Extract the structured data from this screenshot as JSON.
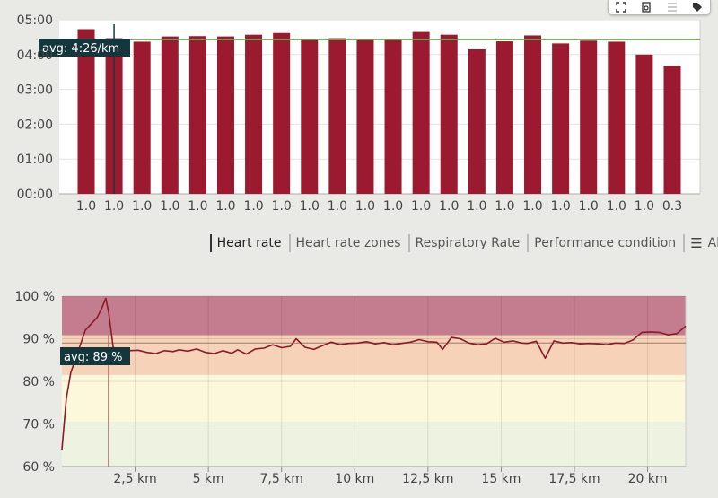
{
  "colors": {
    "bar": "#9b1a30",
    "avg_line": "#6aa84f",
    "hr_line": "#8b1a2a",
    "zone_top": "#c37d8e",
    "zone_orange": "#f6d3b8",
    "zone_yellow": "#fbf8dc",
    "zone_green": "#edf3e0"
  },
  "toolbar": {
    "icons": [
      "fullscreen-icon",
      "export-icon",
      "list-icon",
      "tag-icon"
    ]
  },
  "tabs": [
    {
      "label": "Heart rate",
      "active": true
    },
    {
      "label": "Heart rate zones",
      "active": false
    },
    {
      "label": "Respiratory Rate",
      "active": false
    },
    {
      "label": "Performance condition",
      "active": false
    },
    {
      "label": "All",
      "active": false
    }
  ],
  "chart_data": [
    {
      "type": "bar",
      "y_unit": "min/km",
      "categories": [
        "1.0",
        "1.0",
        "1.0",
        "1.0",
        "1.0",
        "1.0",
        "1.0",
        "1.0",
        "1.0",
        "1.0",
        "1.0",
        "1.0",
        "1.0",
        "1.0",
        "1.0",
        "1.0",
        "1.0",
        "1.0",
        "1.0",
        "1.0",
        "1.0",
        "0.3"
      ],
      "values": [
        4.73,
        4.47,
        4.37,
        4.52,
        4.53,
        4.52,
        4.57,
        4.62,
        4.42,
        4.47,
        4.42,
        4.42,
        4.65,
        4.57,
        4.15,
        4.38,
        4.55,
        4.32,
        4.4,
        4.37,
        4.0,
        3.68
      ],
      "ylim": [
        0,
        5
      ],
      "yticks": [
        0,
        1,
        2,
        3,
        4,
        5
      ],
      "ytick_labels": [
        "00:00",
        "01:00",
        "02:00",
        "03:00",
        "04:00",
        "05:00"
      ],
      "avg_value": 4.43,
      "avg_label": "avg: 4:26/km",
      "cursor_category_index": 1,
      "grid": true
    },
    {
      "type": "line",
      "ylim": [
        60,
        100
      ],
      "yticks": [
        60,
        70,
        80,
        90,
        100
      ],
      "ytick_labels": [
        "60 %",
        "70 %",
        "80 %",
        "90 %",
        "100 %"
      ],
      "xlim": [
        0,
        21.3
      ],
      "xticks": [
        2.5,
        5,
        7.5,
        10,
        12.5,
        15,
        17.5,
        20
      ],
      "xtick_labels": [
        "2,5 km",
        "5 km",
        "7,5 km",
        "10 km",
        "12,5 km",
        "15 km",
        "17,5 km",
        "20 km"
      ],
      "zones": [
        {
          "from": 90.8,
          "to": 100,
          "color": "#c37d8e"
        },
        {
          "from": 81.5,
          "to": 90.8,
          "color": "#f6d3b8"
        },
        {
          "from": 70.5,
          "to": 81.5,
          "color": "#fbf8dc"
        },
        {
          "from": 60,
          "to": 70.5,
          "color": "#edf3e0"
        }
      ],
      "avg_value": 89,
      "avg_label": "avg: 89 %",
      "cursor_x": 1.58,
      "x": [
        0,
        0.15,
        0.3,
        0.45,
        0.6,
        0.8,
        1.0,
        1.2,
        1.35,
        1.5,
        1.6,
        1.75,
        2.0,
        2.3,
        2.6,
        2.9,
        3.2,
        3.5,
        3.8,
        4.0,
        4.3,
        4.6,
        4.9,
        5.2,
        5.5,
        5.8,
        6.0,
        6.3,
        6.6,
        6.9,
        7.2,
        7.5,
        7.8,
        8.0,
        8.3,
        8.6,
        8.9,
        9.2,
        9.5,
        9.8,
        10.1,
        10.4,
        10.7,
        11.0,
        11.3,
        11.6,
        11.9,
        12.2,
        12.5,
        12.8,
        13.0,
        13.3,
        13.6,
        13.9,
        14.2,
        14.5,
        14.8,
        15.1,
        15.4,
        15.7,
        15.9,
        16.2,
        16.5,
        16.8,
        17.1,
        17.4,
        17.7,
        18.0,
        18.3,
        18.6,
        18.9,
        19.2,
        19.5,
        19.8,
        20.1,
        20.4,
        20.7,
        21.0,
        21.3
      ],
      "values": [
        64,
        76,
        82,
        85,
        88,
        92,
        93.5,
        95,
        97,
        99.5,
        96,
        88,
        87,
        87.2,
        87.3,
        86.8,
        86.5,
        87.2,
        87.0,
        87.4,
        87.1,
        87.6,
        86.8,
        86.5,
        87.2,
        86.6,
        87.4,
        86.4,
        87.6,
        87.8,
        88.6,
        87.9,
        88.2,
        90.0,
        88.0,
        87.5,
        88.4,
        89.2,
        88.6,
        88.9,
        89.0,
        89.3,
        88.8,
        89.1,
        88.6,
        88.9,
        89.2,
        89.8,
        89.3,
        89.2,
        87.5,
        90.3,
        90.0,
        89.0,
        88.6,
        88.8,
        90.1,
        89.2,
        89.5,
        89.0,
        88.9,
        89.4,
        85.4,
        89.5,
        89.0,
        89.1,
        88.8,
        88.9,
        88.8,
        88.6,
        89.0,
        88.9,
        89.7,
        91.5,
        91.6,
        91.5,
        90.9,
        91.2,
        93.0
      ]
    }
  ]
}
